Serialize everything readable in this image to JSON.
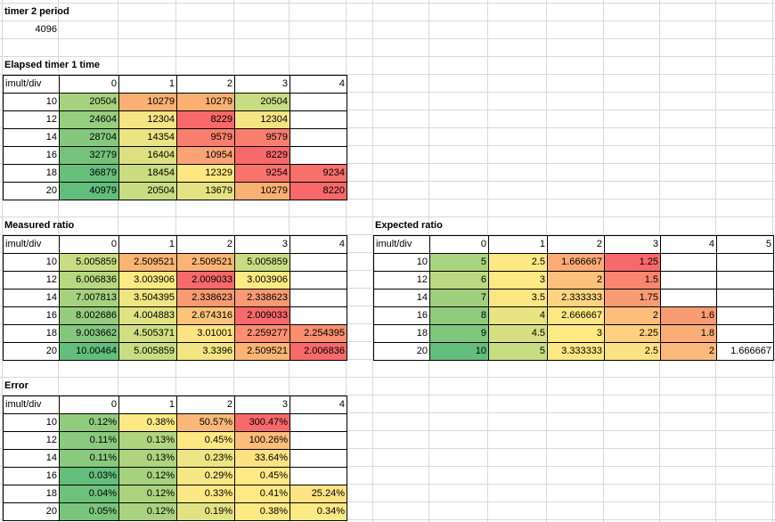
{
  "timer2": {
    "title": "timer 2 period",
    "value": "4096"
  },
  "tables": [
    {
      "key": "elapsed",
      "title": "Elapsed timer 1 time",
      "corner": "imult/div",
      "cols": [
        "0",
        "1",
        "2",
        "3",
        "4"
      ],
      "rows": [
        {
          "label": "10",
          "cells": [
            "20504",
            "10279",
            "10279",
            "20504",
            ""
          ]
        },
        {
          "label": "12",
          "cells": [
            "24604",
            "12304",
            "8229",
            "12304",
            ""
          ]
        },
        {
          "label": "14",
          "cells": [
            "28704",
            "14354",
            "9579",
            "9579",
            ""
          ]
        },
        {
          "label": "16",
          "cells": [
            "32779",
            "16404",
            "10954",
            "8229",
            ""
          ]
        },
        {
          "label": "18",
          "cells": [
            "36879",
            "18454",
            "12329",
            "9254",
            "9234"
          ]
        },
        {
          "label": "20",
          "cells": [
            "40979",
            "20504",
            "13679",
            "10279",
            "8220"
          ]
        }
      ],
      "fills": [
        [
          "#a6d27f",
          "#f9b072",
          "#f9b072",
          "#c8dd82",
          ""
        ],
        [
          "#96cd7e",
          "#f5e484",
          "#f8696b",
          "#f5e484",
          ""
        ],
        [
          "#85c87d",
          "#ebe483",
          "#f97e6e",
          "#f97e6e",
          ""
        ],
        [
          "#74c27c",
          "#dce081",
          "#fba276",
          "#f8696b",
          ""
        ],
        [
          "#68bf7b",
          "#cbdc81",
          "#fde783",
          "#f9736d",
          "#f8706c"
        ],
        [
          "#63be7b",
          "#c8dd82",
          "#e4e283",
          "#f9b072",
          "#f8696b"
        ]
      ]
    },
    {
      "key": "measured",
      "title": "Measured ratio",
      "corner": "imult/div",
      "cols": [
        "0",
        "1",
        "2",
        "3",
        "4"
      ],
      "rows": [
        {
          "label": "10",
          "cells": [
            "5.005859",
            "2.509521",
            "2.509521",
            "5.005859",
            ""
          ]
        },
        {
          "label": "12",
          "cells": [
            "6.006836",
            "3.003906",
            "2.009033",
            "3.003906",
            ""
          ]
        },
        {
          "label": "14",
          "cells": [
            "7.007813",
            "3.504395",
            "2.338623",
            "2.338623",
            ""
          ]
        },
        {
          "label": "16",
          "cells": [
            "8.002686",
            "4.004883",
            "2.674316",
            "2.009033",
            ""
          ]
        },
        {
          "label": "18",
          "cells": [
            "9.003662",
            "4.505371",
            "3.01001",
            "2.259277",
            "2.254395"
          ]
        },
        {
          "label": "20",
          "cells": [
            "10.00464",
            "5.005859",
            "3.3396",
            "2.509521",
            "2.006836"
          ]
        }
      ],
      "fills": [
        [
          "#c8dd82",
          "#fbb474",
          "#fbb474",
          "#c8dd82",
          ""
        ],
        [
          "#b7d780",
          "#feea83",
          "#f8696b",
          "#feea83",
          ""
        ],
        [
          "#a6d27f",
          "#f0e582",
          "#f99a73",
          "#f99a73",
          ""
        ],
        [
          "#95cc7e",
          "#e0e283",
          "#fcc37a",
          "#f8696b",
          ""
        ],
        [
          "#84c77d",
          "#d2df82",
          "#fde483",
          "#fa8f70",
          "#fa8e70"
        ],
        [
          "#63be7b",
          "#c8dd82",
          "#f2e683",
          "#fbb474",
          "#f8696b"
        ]
      ]
    },
    {
      "key": "expected",
      "title": "Expected ratio",
      "corner": "imult/div",
      "cols": [
        "0",
        "1",
        "2",
        "3",
        "4",
        "5"
      ],
      "rows": [
        {
          "label": "10",
          "cells": [
            "5",
            "2.5",
            "1.666667",
            "1.25",
            "",
            ""
          ]
        },
        {
          "label": "12",
          "cells": [
            "6",
            "3",
            "2",
            "1.5",
            "",
            ""
          ]
        },
        {
          "label": "14",
          "cells": [
            "7",
            "3.5",
            "2.333333",
            "1.75",
            "",
            ""
          ]
        },
        {
          "label": "16",
          "cells": [
            "8",
            "4",
            "2.666667",
            "2",
            "1.6",
            ""
          ]
        },
        {
          "label": "18",
          "cells": [
            "9",
            "4.5",
            "3",
            "2.25",
            "1.8",
            ""
          ]
        },
        {
          "label": "20",
          "cells": [
            "10",
            "5",
            "3.333333",
            "2.5",
            "2",
            "1.666667"
          ]
        }
      ],
      "fills": [
        [
          "#a9d47f",
          "#fde983",
          "#fcab77",
          "#f8696b",
          "",
          ""
        ],
        [
          "#bcd981",
          "#ffe984",
          "#fdc17c",
          "#f9866f",
          "",
          ""
        ],
        [
          "#9ed07e",
          "#fbe683",
          "#fed480",
          "#fa9c73",
          "",
          ""
        ],
        [
          "#8fcb7d",
          "#e8e383",
          "#ffe784",
          "#fdbd7b",
          "#f99b73",
          ""
        ],
        [
          "#7ec67c",
          "#d7df82",
          "#feea83",
          "#fed07f",
          "#fbad77",
          ""
        ],
        [
          "#63be7b",
          "#c8dd82",
          "#fde883",
          "#fde283",
          "#fbb97a",
          "#ffffff"
        ]
      ]
    },
    {
      "key": "error",
      "title": "Error",
      "corner": "imult/div",
      "cols": [
        "0",
        "1",
        "2",
        "3",
        "4"
      ],
      "rows": [
        {
          "label": "10",
          "cells": [
            "0.12%",
            "0.38%",
            "50.57%",
            "300.47%",
            ""
          ]
        },
        {
          "label": "12",
          "cells": [
            "0.11%",
            "0.13%",
            "0.45%",
            "100.26%",
            ""
          ]
        },
        {
          "label": "14",
          "cells": [
            "0.11%",
            "0.13%",
            "0.23%",
            "33.64%",
            ""
          ]
        },
        {
          "label": "16",
          "cells": [
            "0.03%",
            "0.12%",
            "0.29%",
            "0.45%",
            ""
          ]
        },
        {
          "label": "18",
          "cells": [
            "0.04%",
            "0.12%",
            "0.33%",
            "0.41%",
            "25.24%"
          ]
        },
        {
          "label": "20",
          "cells": [
            "0.05%",
            "0.12%",
            "0.19%",
            "0.38%",
            "0.34%"
          ]
        }
      ],
      "fills": [
        [
          "#91cb7e",
          "#fde984",
          "#fbb87a",
          "#f8696b",
          ""
        ],
        [
          "#8ac97e",
          "#b0d580",
          "#fee883",
          "#fcbc7a",
          ""
        ],
        [
          "#88c97d",
          "#aed47f",
          "#ece583",
          "#fde283",
          ""
        ],
        [
          "#63be7b",
          "#a6d27f",
          "#f6e784",
          "#ffe984",
          ""
        ],
        [
          "#6ec17b",
          "#abd37f",
          "#fbe884",
          "#fee984",
          "#fde383"
        ],
        [
          "#79c57d",
          "#aad37f",
          "#e3e283",
          "#fde984",
          "#fde984"
        ]
      ]
    }
  ]
}
